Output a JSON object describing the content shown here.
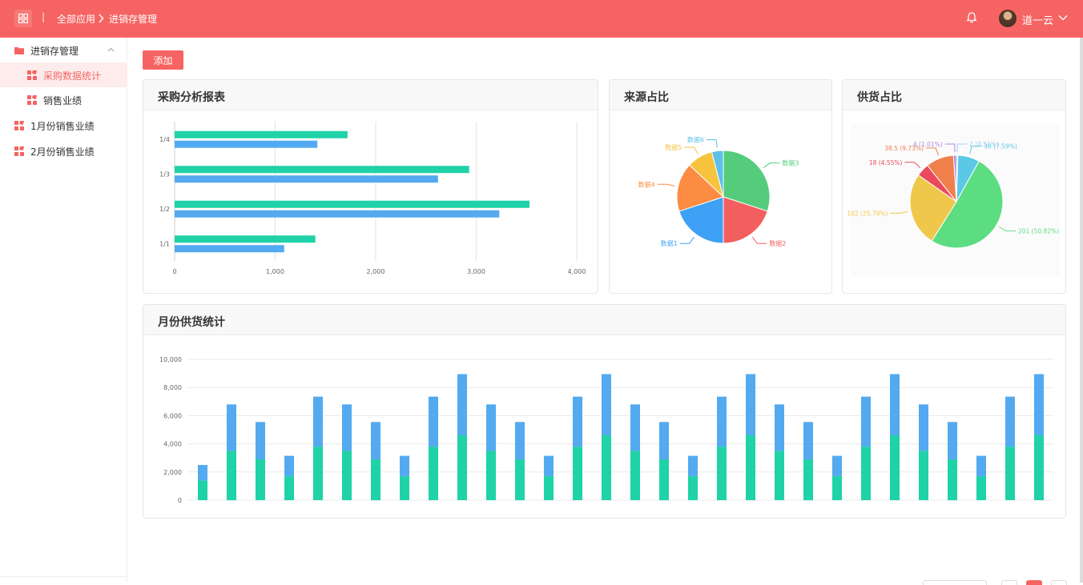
{
  "topbar": {
    "breadcrumb_sep": "|",
    "breadcrumb_all": "全部应用",
    "breadcrumb_current": "进销存管理",
    "user_name": "道一云"
  },
  "sidebar": {
    "items": [
      {
        "label": "进销存管理",
        "icon": "folder-icon",
        "level": 0,
        "expanded": true
      },
      {
        "label": "采购数据统计",
        "icon": "grid-icon",
        "level": 1,
        "active": true
      },
      {
        "label": "销售业绩",
        "icon": "grid-icon",
        "level": 1
      },
      {
        "label": "1月份销售业绩",
        "icon": "grid-icon",
        "level": 0
      },
      {
        "label": "2月份销售业绩",
        "icon": "grid-icon",
        "level": 0
      }
    ]
  },
  "toolbar": {
    "add_label": "添加"
  },
  "colors": {
    "accent": "#f56462",
    "green": "#1fd2a7",
    "blue": "#53aaf0"
  },
  "cards": {
    "purchase_title": "采购分析报表",
    "source_title": "来源占比",
    "supply_title": "供货占比",
    "monthly_title": "月份供货统计"
  },
  "chart_data": [
    {
      "type": "bar",
      "orientation": "horizontal",
      "categories": [
        "1/1",
        "1/2",
        "1/3",
        "1/4"
      ],
      "series": [
        {
          "values": [
            1400,
            3530,
            2930,
            1720
          ]
        },
        {
          "values": [
            1090,
            3230,
            2620,
            1420
          ]
        }
      ],
      "xlim": [
        0,
        4000
      ],
      "x_ticks": [
        "0",
        "1,000",
        "2,000",
        "3,000",
        "4,000"
      ]
    },
    {
      "type": "pie",
      "slices": [
        {
          "label": "数据3",
          "value": 30,
          "color": "#54cc7c"
        },
        {
          "label": "数据2",
          "value": 20,
          "color": "#f35e5f"
        },
        {
          "label": "数据1",
          "value": 20,
          "color": "#3ea1f5"
        },
        {
          "label": "数据4",
          "value": 17,
          "color": "#fb8c42"
        },
        {
          "label": "数据5",
          "value": 9,
          "color": "#f7c33e"
        },
        {
          "label": "数据6",
          "value": 4,
          "color": "#5bc0e8"
        }
      ]
    },
    {
      "type": "pie",
      "slices": [
        {
          "label": "2 (0.51%)",
          "value": 2,
          "color": "#a3cdf5"
        },
        {
          "label": "30 (7.59%)",
          "value": 30,
          "color": "#5bc8e6"
        },
        {
          "label": "201 (50.82%)",
          "value": 201,
          "color": "#5cdd82"
        },
        {
          "label": "102 (25.79%)",
          "value": 102,
          "color": "#efc74a"
        },
        {
          "label": "18 (4.55%)",
          "value": 18,
          "color": "#ea4a5b"
        },
        {
          "label": "38.5 (9.73%)",
          "value": 38.5,
          "color": "#f17f4c"
        },
        {
          "label": "4 (1.01%)",
          "value": 4,
          "color": "#b08ae0"
        }
      ]
    },
    {
      "type": "bar",
      "stacked": true,
      "ylim": [
        0,
        10000
      ],
      "y_ticks": [
        "0",
        "2,000",
        "4,000",
        "6,000",
        "8,000",
        "10,000"
      ],
      "series": [
        {
          "values": [
            1400,
            3500,
            2900,
            1700,
            3800,
            3500,
            2900,
            1700,
            3800,
            4600,
            3500,
            2900,
            1700,
            3800,
            4600,
            3500,
            2900,
            1700,
            3800,
            4600,
            3500,
            2900,
            1700,
            3800,
            4600,
            3500,
            2900,
            1700,
            3800,
            4600
          ]
        },
        {
          "values": [
            1100,
            3300,
            2650,
            1450,
            3550,
            3300,
            2650,
            1450,
            3550,
            4350,
            3300,
            2650,
            1450,
            3550,
            4350,
            3300,
            2650,
            1450,
            3550,
            4350,
            3300,
            2650,
            1450,
            3550,
            4350,
            3300,
            2650,
            1450,
            3550,
            4350
          ]
        }
      ]
    }
  ]
}
